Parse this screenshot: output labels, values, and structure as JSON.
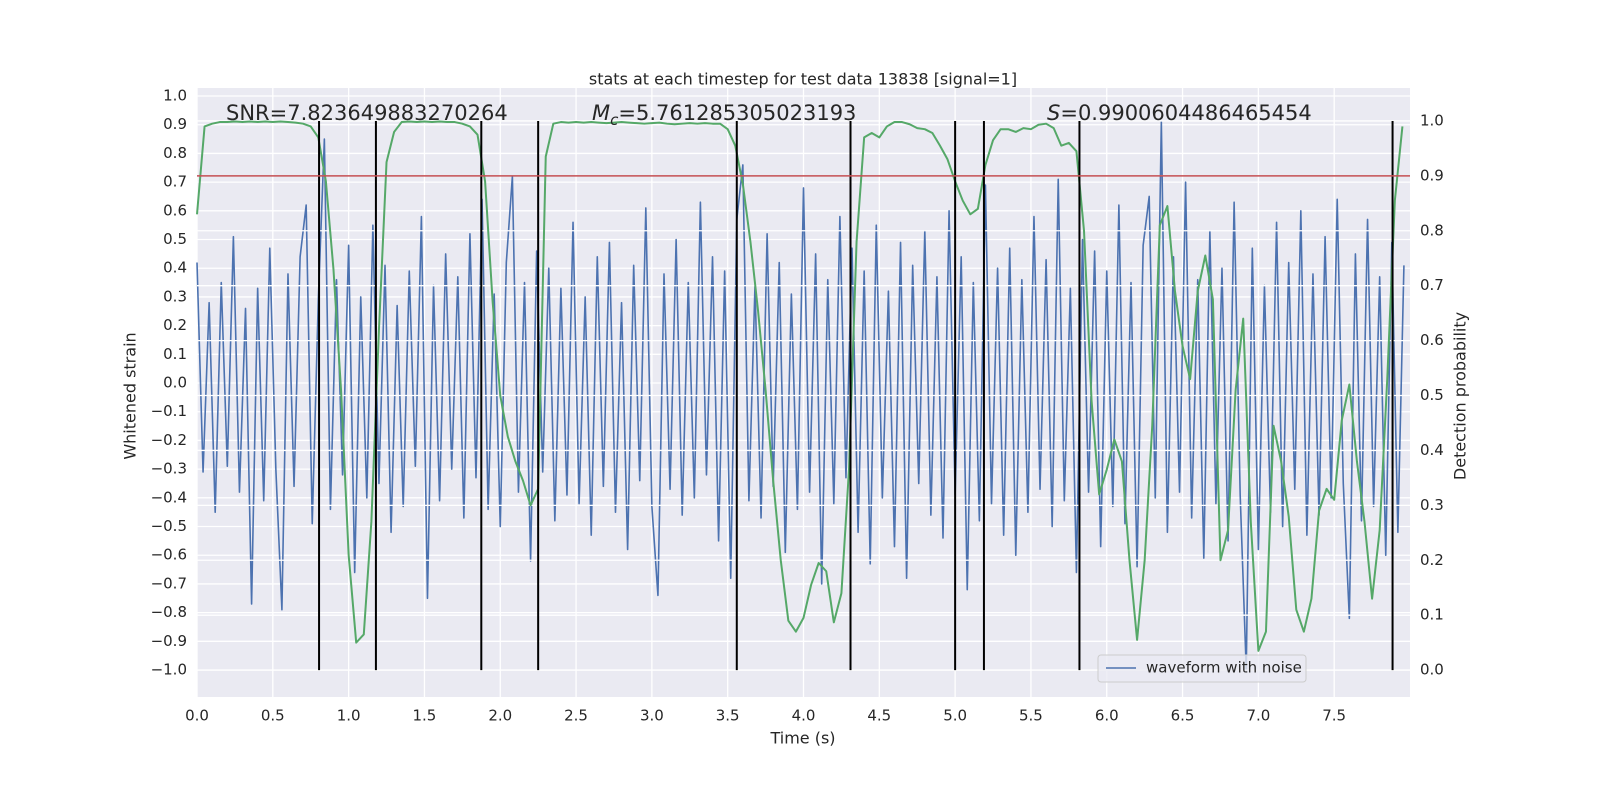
{
  "chart_data": {
    "type": "line",
    "title": "stats at each timestep for test data 13838 [signal=1]",
    "xlabel": "Time (s)",
    "ylabel": "Whitened strain",
    "y2label": "Detection probability",
    "annotations": [
      {
        "text": "SNR=7.823649883270264"
      },
      {
        "symbol": "M",
        "sub": "c",
        "text": "=5.761285305023193"
      },
      {
        "symbol": "S",
        "text": "=0.9900604486465454"
      }
    ],
    "xlim": [
      0,
      8.0
    ],
    "ylim": [
      -1.094,
      1.028
    ],
    "y2lim": [
      -0.049,
      1.06
    ],
    "xticks": [
      {
        "value": 0,
        "label": "0.0"
      },
      0.5,
      {
        "value": 1,
        "label": "1.0"
      },
      1.5,
      {
        "value": 2,
        "label": "2.0"
      },
      2.5,
      {
        "value": 3,
        "label": "3.0"
      },
      3.5,
      {
        "value": 4,
        "label": "4.0"
      },
      4.5,
      {
        "value": 5,
        "label": "5.0"
      },
      5.5,
      {
        "value": 6,
        "label": "6.0"
      },
      6.5,
      {
        "value": 7,
        "label": "7.0"
      },
      7.5
    ],
    "yticks": [
      {
        "value": -1,
        "label": "−1.0"
      },
      {
        "value": -0.9,
        "label": "−0.9"
      },
      {
        "value": -0.8,
        "label": "−0.8"
      },
      {
        "value": -0.7,
        "label": "−0.7"
      },
      {
        "value": -0.6,
        "label": "−0.6"
      },
      {
        "value": -0.5,
        "label": "−0.5"
      },
      {
        "value": -0.4,
        "label": "−0.4"
      },
      {
        "value": -0.3,
        "label": "−0.3"
      },
      {
        "value": -0.2,
        "label": "−0.2"
      },
      {
        "value": -0.1,
        "label": "−0.1"
      },
      {
        "value": 0,
        "label": "0.0"
      },
      0.1,
      0.2,
      0.3,
      0.4,
      0.5,
      0.6,
      0.7,
      0.8,
      0.9,
      {
        "value": 1,
        "label": "1.0"
      }
    ],
    "y2ticks": [
      {
        "value": 0,
        "label": "0.0"
      },
      0.1,
      0.2,
      0.3,
      0.4,
      0.5,
      0.6,
      0.7,
      0.8,
      0.9,
      {
        "value": 1,
        "label": "1.0"
      }
    ],
    "grid": true,
    "legend": "lower right",
    "series": [
      {
        "name": "waveform with noise",
        "color": "#4c72b0",
        "x": [
          0,
          0.04,
          0.08,
          0.12,
          0.16,
          0.2,
          0.24,
          0.28,
          0.32,
          0.36,
          0.4,
          0.44,
          0.48,
          0.52,
          0.56,
          0.6,
          0.64,
          0.68,
          0.72,
          0.76,
          0.8,
          0.84,
          0.88,
          0.92,
          0.96,
          1,
          1.04,
          1.08,
          1.12,
          1.16,
          1.2,
          1.24,
          1.28,
          1.32,
          1.36,
          1.4,
          1.44,
          1.48,
          1.52,
          1.56,
          1.6,
          1.64,
          1.68,
          1.72,
          1.76,
          1.8,
          1.84,
          1.88,
          1.92,
          1.96,
          2,
          2.04,
          2.08,
          2.12,
          2.16,
          2.2,
          2.24,
          2.28,
          2.32,
          2.36,
          2.4,
          2.44,
          2.48,
          2.52,
          2.56,
          2.6,
          2.64,
          2.68,
          2.72,
          2.76,
          2.8,
          2.84,
          2.88,
          2.92,
          2.96,
          3,
          3.04,
          3.08,
          3.12,
          3.16,
          3.2,
          3.24,
          3.28,
          3.32,
          3.36,
          3.4,
          3.44,
          3.48,
          3.52,
          3.56,
          3.6,
          3.64,
          3.68,
          3.72,
          3.76,
          3.8,
          3.84,
          3.88,
          3.92,
          3.96,
          4,
          4.04,
          4.08,
          4.12,
          4.16,
          4.2,
          4.24,
          4.28,
          4.32,
          4.36,
          4.4,
          4.44,
          4.48,
          4.52,
          4.56,
          4.6,
          4.64,
          4.68,
          4.72,
          4.76,
          4.8,
          4.84,
          4.88,
          4.92,
          4.96,
          5,
          5.04,
          5.08,
          5.12,
          5.16,
          5.2,
          5.24,
          5.28,
          5.32,
          5.36,
          5.4,
          5.44,
          5.48,
          5.52,
          5.56,
          5.6,
          5.64,
          5.68,
          5.72,
          5.76,
          5.8,
          5.84,
          5.88,
          5.92,
          5.96,
          6,
          6.04,
          6.08,
          6.12,
          6.16,
          6.2,
          6.24,
          6.28,
          6.32,
          6.36,
          6.4,
          6.44,
          6.48,
          6.52,
          6.56,
          6.6,
          6.64,
          6.68,
          6.72,
          6.76,
          6.8,
          6.84,
          6.88,
          6.92,
          6.96,
          7,
          7.04,
          7.08,
          7.12,
          7.16,
          7.2,
          7.24,
          7.28,
          7.32,
          7.36,
          7.4,
          7.44,
          7.48,
          7.52,
          7.56,
          7.6,
          7.64,
          7.68,
          7.72,
          7.76,
          7.8,
          7.84,
          7.88,
          7.92,
          7.96
        ],
        "values": [
          0.42,
          -0.31,
          0.28,
          -0.45,
          0.35,
          -0.29,
          0.51,
          -0.38,
          0.26,
          -0.77,
          0.33,
          -0.41,
          0.47,
          -0.3,
          -0.79,
          0.38,
          -0.36,
          0.44,
          0.62,
          -0.49,
          0.29,
          0.85,
          -0.44,
          0.36,
          -0.32,
          0.48,
          -0.66,
          0.3,
          -0.4,
          0.55,
          -0.35,
          0.41,
          -0.52,
          0.27,
          -0.43,
          0.39,
          -0.29,
          0.58,
          -0.75,
          0.34,
          -0.41,
          0.45,
          -0.3,
          0.37,
          -0.47,
          0.52,
          -0.33,
          0.64,
          -0.44,
          0.31,
          -0.5,
          0.42,
          0.72,
          -0.38,
          0.35,
          -0.62,
          0.46,
          -0.31,
          0.4,
          -0.48,
          0.33,
          -0.39,
          0.56,
          -0.42,
          0.3,
          -0.53,
          0.44,
          -0.36,
          0.49,
          -0.45,
          0.28,
          -0.58,
          0.41,
          -0.34,
          0.61,
          -0.43,
          -0.74,
          0.38,
          -0.37,
          0.5,
          -0.46,
          0.35,
          -0.4,
          0.63,
          -0.32,
          0.44,
          -0.55,
          0.39,
          -0.68,
          0.57,
          0.76,
          -0.41,
          0.34,
          -0.47,
          0.52,
          -0.36,
          0.42,
          -0.59,
          0.31,
          -0.44,
          0.68,
          -0.38,
          0.45,
          -0.7,
          0.36,
          -0.42,
          0.58,
          -0.33,
          0.47,
          -0.52,
          0.39,
          -0.63,
          0.55,
          -0.4,
          0.32,
          -0.57,
          0.49,
          -0.68,
          0.41,
          -0.35,
          0.53,
          -0.46,
          0.37,
          -0.54,
          0.6,
          -0.39,
          0.44,
          -0.72,
          0.35,
          -0.48,
          0.69,
          -0.42,
          0.4,
          -0.53,
          0.47,
          -0.6,
          0.36,
          -0.45,
          0.58,
          -0.37,
          0.43,
          -0.5,
          0.71,
          -0.41,
          0.33,
          -0.66,
          0.5,
          -0.38,
          0.46,
          -0.57,
          0.39,
          -0.43,
          0.62,
          -0.49,
          0.35,
          -0.64,
          0.48,
          0.65,
          -0.4,
          0.91,
          -0.52,
          0.44,
          -0.38,
          0.7,
          -0.47,
          0.36,
          -0.61,
          0.53,
          -0.42,
          0.4,
          -0.55,
          0.63,
          -0.39,
          -1.0,
          0.47,
          -0.58,
          0.34,
          -0.45,
          0.56,
          -0.5,
          0.42,
          -0.37,
          0.6,
          -0.53,
          0.38,
          -0.46,
          0.51,
          -0.4,
          0.64,
          -0.35,
          -0.82,
          0.45,
          -0.48,
          0.57,
          -0.43,
          0.37,
          -0.6,
          0.49,
          -0.52,
          0.41
        ]
      },
      {
        "color": "#55a868",
        "axis": "y2",
        "x": [
          0,
          0.05,
          0.1,
          0.15,
          0.2,
          0.25,
          0.3,
          0.35,
          0.4,
          0.45,
          0.5,
          0.55,
          0.6,
          0.65,
          0.7,
          0.75,
          0.8,
          0.85,
          0.9,
          0.95,
          1,
          1.05,
          1.1,
          1.15,
          1.2,
          1.25,
          1.3,
          1.35,
          1.4,
          1.45,
          1.5,
          1.55,
          1.6,
          1.65,
          1.7,
          1.75,
          1.8,
          1.85,
          1.9,
          1.95,
          2,
          2.05,
          2.1,
          2.15,
          2.2,
          2.25,
          2.3,
          2.35,
          2.4,
          2.45,
          2.5,
          2.55,
          2.6,
          2.65,
          2.7,
          2.75,
          2.8,
          2.85,
          2.9,
          2.95,
          3,
          3.05,
          3.1,
          3.15,
          3.2,
          3.25,
          3.3,
          3.35,
          3.4,
          3.45,
          3.5,
          3.55,
          3.6,
          3.65,
          3.7,
          3.75,
          3.8,
          3.85,
          3.9,
          3.95,
          4,
          4.05,
          4.1,
          4.15,
          4.2,
          4.25,
          4.3,
          4.35,
          4.4,
          4.45,
          4.5,
          4.55,
          4.6,
          4.65,
          4.7,
          4.75,
          4.8,
          4.85,
          4.9,
          4.95,
          5,
          5.05,
          5.1,
          5.15,
          5.2,
          5.25,
          5.3,
          5.35,
          5.4,
          5.45,
          5.5,
          5.55,
          5.6,
          5.65,
          5.7,
          5.75,
          5.8,
          5.85,
          5.9,
          5.95,
          6,
          6.05,
          6.1,
          6.15,
          6.2,
          6.25,
          6.3,
          6.35,
          6.4,
          6.45,
          6.5,
          6.55,
          6.6,
          6.65,
          6.7,
          6.75,
          6.8,
          6.85,
          6.9,
          6.95,
          7,
          7.05,
          7.1,
          7.15,
          7.2,
          7.25,
          7.3,
          7.35,
          7.4,
          7.45,
          7.5,
          7.55,
          7.6,
          7.65,
          7.7,
          7.75,
          7.8,
          7.85,
          7.9,
          7.95
        ],
        "values": [
          0.83,
          0.99,
          0.995,
          0.998,
          0.998,
          0.999,
          0.998,
          0.999,
          0.998,
          0.999,
          0.998,
          0.999,
          0.998,
          0.997,
          0.995,
          0.99,
          0.97,
          0.89,
          0.73,
          0.51,
          0.21,
          0.05,
          0.065,
          0.27,
          0.62,
          0.925,
          0.98,
          0.998,
          0.999,
          0.998,
          0.999,
          0.998,
          0.999,
          0.998,
          0.998,
          0.995,
          0.99,
          0.975,
          0.89,
          0.67,
          0.5,
          0.425,
          0.38,
          0.345,
          0.3,
          0.33,
          0.935,
          0.995,
          0.998,
          0.997,
          0.998,
          0.997,
          0.998,
          0.997,
          0.996,
          0.997,
          0.998,
          0.997,
          0.996,
          0.995,
          0.996,
          0.997,
          0.995,
          0.994,
          0.995,
          0.996,
          0.995,
          0.996,
          0.995,
          0.995,
          0.985,
          0.955,
          0.885,
          0.78,
          0.655,
          0.51,
          0.345,
          0.2,
          0.09,
          0.07,
          0.095,
          0.155,
          0.195,
          0.18,
          0.087,
          0.14,
          0.365,
          0.78,
          0.97,
          0.978,
          0.97,
          0.99,
          0.998,
          0.998,
          0.994,
          0.987,
          0.985,
          0.978,
          0.955,
          0.93,
          0.89,
          0.855,
          0.83,
          0.84,
          0.92,
          0.965,
          0.985,
          0.985,
          0.98,
          0.987,
          0.985,
          0.993,
          0.995,
          0.987,
          0.955,
          0.96,
          0.945,
          0.8,
          0.49,
          0.32,
          0.365,
          0.42,
          0.38,
          0.2,
          0.055,
          0.2,
          0.445,
          0.81,
          0.845,
          0.69,
          0.59,
          0.53,
          0.69,
          0.755,
          0.675,
          0.2,
          0.255,
          0.51,
          0.64,
          0.27,
          0.035,
          0.07,
          0.445,
          0.38,
          0.28,
          0.11,
          0.07,
          0.13,
          0.29,
          0.33,
          0.31,
          0.455,
          0.52,
          0.38,
          0.27,
          0.13,
          0.255,
          0.53,
          0.855,
          0.99
        ]
      }
    ],
    "vlines": {
      "x": [
        0.805,
        1.18,
        1.875,
        2.25,
        3.56,
        4.31,
        5.0,
        5.19,
        5.82,
        7.885
      ],
      "ymin": 0,
      "ymax": 1,
      "axis": "y2",
      "color": "#000000"
    },
    "hline": {
      "value": 0.9,
      "axis": "y2",
      "color": "#c44e52"
    }
  }
}
